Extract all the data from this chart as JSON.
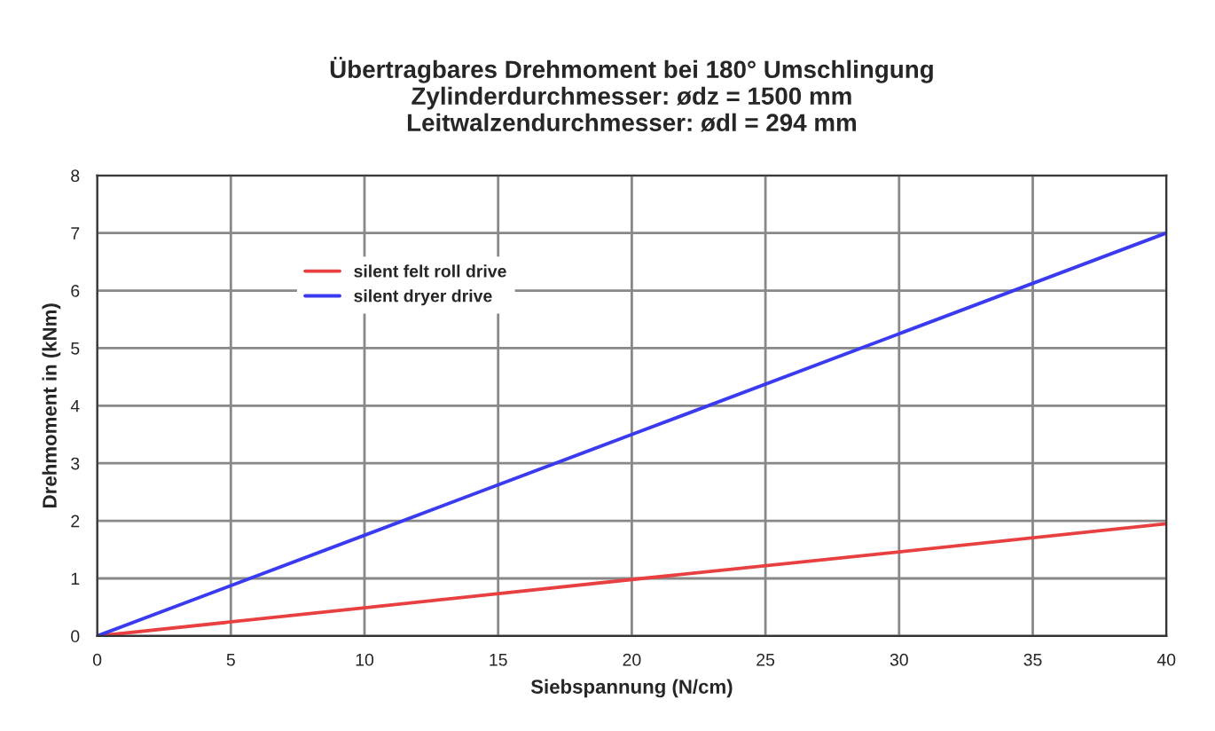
{
  "chart_data": {
    "type": "line",
    "title": "Übertragbares Drehmoment bei 180° Umschlingung\nZylinderdurchmesser: ødz = 1500 mm\nLeitwalzendurchmesser: ødl = 294 mm",
    "xlabel": "Siebspannung (N/cm)",
    "ylabel": "Drehmoment in (kNm)",
    "x": [
      0,
      10,
      20,
      30,
      40
    ],
    "series": [
      {
        "name": "silent felt roll drive",
        "color": "#e84040",
        "values": [
          0,
          0.49,
          0.98,
          1.46,
          1.95
        ]
      },
      {
        "name": "silent dryer drive",
        "color": "#3a3af0",
        "values": [
          0,
          1.75,
          3.5,
          5.25,
          7.0
        ]
      }
    ],
    "xlim": [
      0,
      40
    ],
    "ylim": [
      0,
      8
    ],
    "xticks": [
      0,
      5,
      10,
      15,
      20,
      25,
      30,
      35,
      40
    ],
    "yticks": [
      0,
      1,
      2,
      3,
      4,
      5,
      6,
      7,
      8
    ],
    "grid": true,
    "legend": "upper left",
    "line_style": "solid",
    "marker": "none"
  }
}
